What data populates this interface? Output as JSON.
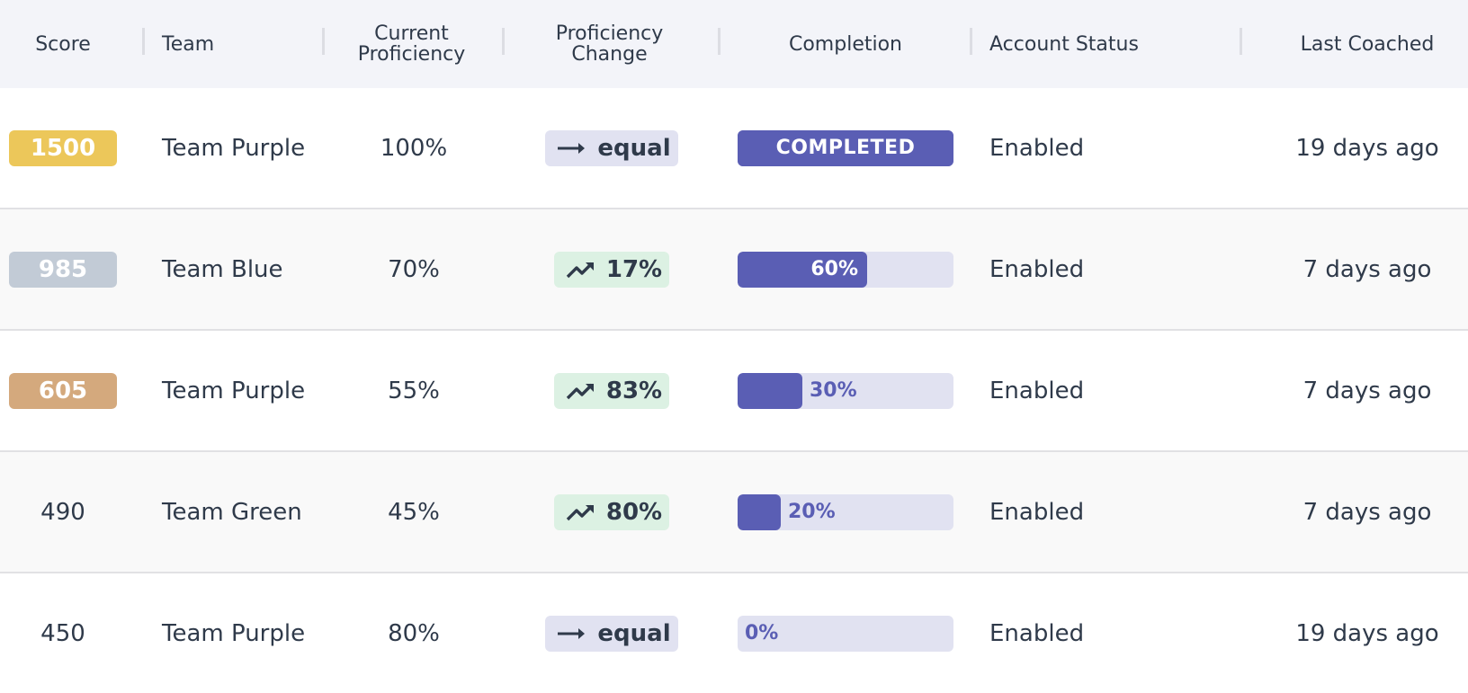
{
  "columns": {
    "score": "Score",
    "team": "Team",
    "current_proficiency": [
      "Current",
      "Proficiency"
    ],
    "proficiency_change": [
      "Proficiency",
      "Change"
    ],
    "completion": "Completion",
    "account_status": "Account Status",
    "last_coached": "Last Coached"
  },
  "colors": {
    "gold": "#ecc75a",
    "silver": "#c2cbd6",
    "bronze": "#d4a97d",
    "progress_fill": "#5a5eb4",
    "progress_track": "#e1e2f1",
    "trend_up_bg": "#dcf1e3",
    "trend_equal_bg": "#e1e2f1"
  },
  "rows": [
    {
      "score": "1500",
      "badge": "gold",
      "team": "Team Purple",
      "current_proficiency": "100%",
      "change": {
        "icon": "arrow-right-icon",
        "text": "equal",
        "kind": "equal"
      },
      "completion": {
        "label": "COMPLETED",
        "percent": 100,
        "completed": true
      },
      "account_status": "Enabled",
      "last_coached": "19 days ago"
    },
    {
      "score": "985",
      "badge": "silver",
      "team": "Team Blue",
      "current_proficiency": "70%",
      "change": {
        "icon": "trending-up-icon",
        "text": "17%",
        "kind": "up"
      },
      "completion": {
        "label": "60%",
        "percent": 60,
        "completed": false
      },
      "account_status": "Enabled",
      "last_coached": "7 days ago"
    },
    {
      "score": "605",
      "badge": "bronze",
      "team": "Team Purple",
      "current_proficiency": "55%",
      "change": {
        "icon": "trending-up-icon",
        "text": "83%",
        "kind": "up"
      },
      "completion": {
        "label": "30%",
        "percent": 30,
        "completed": false
      },
      "account_status": "Enabled",
      "last_coached": "7 days ago"
    },
    {
      "score": "490",
      "badge": null,
      "team": "Team Green",
      "current_proficiency": "45%",
      "change": {
        "icon": "trending-up-icon",
        "text": "80%",
        "kind": "up"
      },
      "completion": {
        "label": "20%",
        "percent": 20,
        "completed": false
      },
      "account_status": "Enabled",
      "last_coached": "7 days ago"
    },
    {
      "score": "450",
      "badge": null,
      "team": "Team Purple",
      "current_proficiency": "80%",
      "change": {
        "icon": "arrow-right-icon",
        "text": "equal",
        "kind": "equal"
      },
      "completion": {
        "label": "0%",
        "percent": 0,
        "completed": false
      },
      "account_status": "Enabled",
      "last_coached": "19 days ago"
    }
  ]
}
